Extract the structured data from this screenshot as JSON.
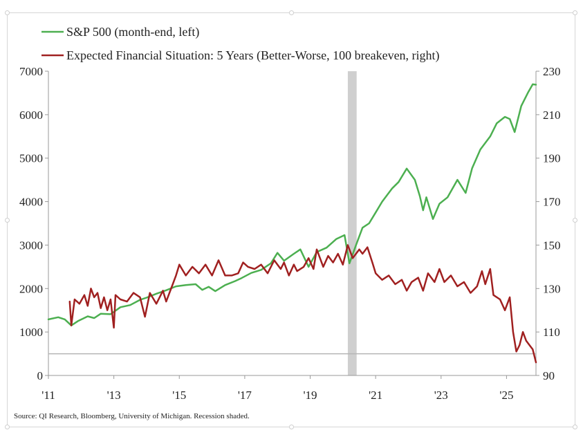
{
  "chart_data": {
    "type": "line",
    "title": "",
    "source_note": "Source: QI Research, Bloomberg, University of Michigan. Recession shaded.",
    "x_tick_labels": [
      "'11",
      "'13",
      "'15",
      "'17",
      "'19",
      "'21",
      "'23",
      "'25"
    ],
    "x_tick_values": [
      2011,
      2013,
      2015,
      2017,
      2019,
      2021,
      2023,
      2025
    ],
    "xlim": [
      2011.0,
      2025.9
    ],
    "left_axis": {
      "ylim": [
        0,
        7000
      ],
      "ticks": [
        0,
        1000,
        2000,
        3000,
        4000,
        5000,
        6000,
        7000
      ],
      "tick_labels": [
        "0",
        "1000",
        "2000",
        "3000",
        "4000",
        "5000",
        "6000",
        "7000"
      ]
    },
    "right_axis": {
      "ylim": [
        90,
        230
      ],
      "ticks": [
        90,
        110,
        130,
        150,
        170,
        190,
        210,
        230
      ],
      "tick_labels": [
        "90",
        "110",
        "130",
        "150",
        "170",
        "190",
        "210",
        "230"
      ]
    },
    "reference_line": {
      "axis": "right",
      "value": 100
    },
    "recession": {
      "start": 2020.15,
      "end": 2020.42
    },
    "legend_position": "top-left",
    "series": [
      {
        "name": "S&P 500 (month-end, left)",
        "axis": "left",
        "color": "#4caf50",
        "points": [
          [
            2011.0,
            1290
          ],
          [
            2011.3,
            1340
          ],
          [
            2011.5,
            1290
          ],
          [
            2011.7,
            1150
          ],
          [
            2011.9,
            1250
          ],
          [
            2012.2,
            1360
          ],
          [
            2012.4,
            1320
          ],
          [
            2012.6,
            1420
          ],
          [
            2012.9,
            1410
          ],
          [
            2013.2,
            1570
          ],
          [
            2013.5,
            1620
          ],
          [
            2013.8,
            1740
          ],
          [
            2014.0,
            1790
          ],
          [
            2014.3,
            1880
          ],
          [
            2014.6,
            1960
          ],
          [
            2014.9,
            2050
          ],
          [
            2015.2,
            2080
          ],
          [
            2015.5,
            2100
          ],
          [
            2015.7,
            1970
          ],
          [
            2015.9,
            2040
          ],
          [
            2016.1,
            1940
          ],
          [
            2016.4,
            2080
          ],
          [
            2016.7,
            2170
          ],
          [
            2016.9,
            2240
          ],
          [
            2017.2,
            2360
          ],
          [
            2017.5,
            2430
          ],
          [
            2017.8,
            2580
          ],
          [
            2018.0,
            2820
          ],
          [
            2018.2,
            2640
          ],
          [
            2018.5,
            2800
          ],
          [
            2018.7,
            2900
          ],
          [
            2018.95,
            2500
          ],
          [
            2019.2,
            2840
          ],
          [
            2019.5,
            2940
          ],
          [
            2019.8,
            3140
          ],
          [
            2020.05,
            3230
          ],
          [
            2020.2,
            2580
          ],
          [
            2020.4,
            3000
          ],
          [
            2020.6,
            3400
          ],
          [
            2020.8,
            3500
          ],
          [
            2021.0,
            3750
          ],
          [
            2021.2,
            4000
          ],
          [
            2021.5,
            4300
          ],
          [
            2021.7,
            4450
          ],
          [
            2021.95,
            4760
          ],
          [
            2022.2,
            4500
          ],
          [
            2022.35,
            4130
          ],
          [
            2022.45,
            3800
          ],
          [
            2022.55,
            4100
          ],
          [
            2022.75,
            3600
          ],
          [
            2022.95,
            3950
          ],
          [
            2023.2,
            4100
          ],
          [
            2023.5,
            4500
          ],
          [
            2023.75,
            4200
          ],
          [
            2023.95,
            4770
          ],
          [
            2024.2,
            5200
          ],
          [
            2024.5,
            5500
          ],
          [
            2024.7,
            5800
          ],
          [
            2024.95,
            5950
          ],
          [
            2025.1,
            5900
          ],
          [
            2025.25,
            5600
          ],
          [
            2025.45,
            6200
          ],
          [
            2025.65,
            6500
          ],
          [
            2025.8,
            6700
          ],
          [
            2025.9,
            6690
          ]
        ]
      },
      {
        "name": "Expected Financial Situation: 5 Years (Better-Worse, 100 breakeven, right)",
        "axis": "right",
        "color": "#a02020",
        "points": [
          [
            2011.65,
            124
          ],
          [
            2011.7,
            113
          ],
          [
            2011.8,
            125
          ],
          [
            2011.95,
            123
          ],
          [
            2012.1,
            127
          ],
          [
            2012.2,
            122
          ],
          [
            2012.3,
            130
          ],
          [
            2012.4,
            126
          ],
          [
            2012.5,
            128
          ],
          [
            2012.6,
            121
          ],
          [
            2012.7,
            126
          ],
          [
            2012.8,
            120
          ],
          [
            2012.9,
            125
          ],
          [
            2013.0,
            112
          ],
          [
            2013.05,
            127
          ],
          [
            2013.2,
            125
          ],
          [
            2013.4,
            124
          ],
          [
            2013.6,
            128
          ],
          [
            2013.8,
            126
          ],
          [
            2013.95,
            117
          ],
          [
            2014.1,
            128
          ],
          [
            2014.3,
            123
          ],
          [
            2014.5,
            129
          ],
          [
            2014.6,
            124
          ],
          [
            2014.8,
            132
          ],
          [
            2014.9,
            136
          ],
          [
            2015.0,
            141
          ],
          [
            2015.2,
            136
          ],
          [
            2015.4,
            140
          ],
          [
            2015.6,
            137
          ],
          [
            2015.8,
            141
          ],
          [
            2016.0,
            136
          ],
          [
            2016.2,
            143
          ],
          [
            2016.4,
            136
          ],
          [
            2016.6,
            136
          ],
          [
            2016.8,
            137
          ],
          [
            2016.95,
            142
          ],
          [
            2017.1,
            140
          ],
          [
            2017.3,
            139
          ],
          [
            2017.5,
            141
          ],
          [
            2017.7,
            137
          ],
          [
            2017.9,
            143
          ],
          [
            2018.1,
            139
          ],
          [
            2018.2,
            142
          ],
          [
            2018.35,
            136
          ],
          [
            2018.5,
            141
          ],
          [
            2018.6,
            138
          ],
          [
            2018.8,
            140
          ],
          [
            2018.95,
            144
          ],
          [
            2019.1,
            139
          ],
          [
            2019.2,
            148
          ],
          [
            2019.4,
            140
          ],
          [
            2019.55,
            145
          ],
          [
            2019.7,
            142
          ],
          [
            2019.85,
            146
          ],
          [
            2020.0,
            141
          ],
          [
            2020.15,
            150
          ],
          [
            2020.3,
            144
          ],
          [
            2020.5,
            148
          ],
          [
            2020.6,
            146
          ],
          [
            2020.75,
            149
          ],
          [
            2020.9,
            142
          ],
          [
            2021.0,
            137
          ],
          [
            2021.2,
            134
          ],
          [
            2021.4,
            136
          ],
          [
            2021.6,
            132
          ],
          [
            2021.8,
            134
          ],
          [
            2021.95,
            129
          ],
          [
            2022.1,
            133
          ],
          [
            2022.3,
            135
          ],
          [
            2022.45,
            129
          ],
          [
            2022.6,
            137
          ],
          [
            2022.8,
            133
          ],
          [
            2022.95,
            139
          ],
          [
            2023.1,
            133
          ],
          [
            2023.3,
            136
          ],
          [
            2023.5,
            131
          ],
          [
            2023.7,
            133
          ],
          [
            2023.9,
            128
          ],
          [
            2024.1,
            131
          ],
          [
            2024.25,
            138
          ],
          [
            2024.35,
            132
          ],
          [
            2024.5,
            139
          ],
          [
            2024.6,
            127
          ],
          [
            2024.8,
            125
          ],
          [
            2024.95,
            120
          ],
          [
            2025.1,
            126
          ],
          [
            2025.2,
            110
          ],
          [
            2025.3,
            101
          ],
          [
            2025.4,
            104
          ],
          [
            2025.5,
            110
          ],
          [
            2025.6,
            106
          ],
          [
            2025.7,
            104
          ],
          [
            2025.8,
            102
          ],
          [
            2025.9,
            96
          ]
        ]
      }
    ]
  }
}
